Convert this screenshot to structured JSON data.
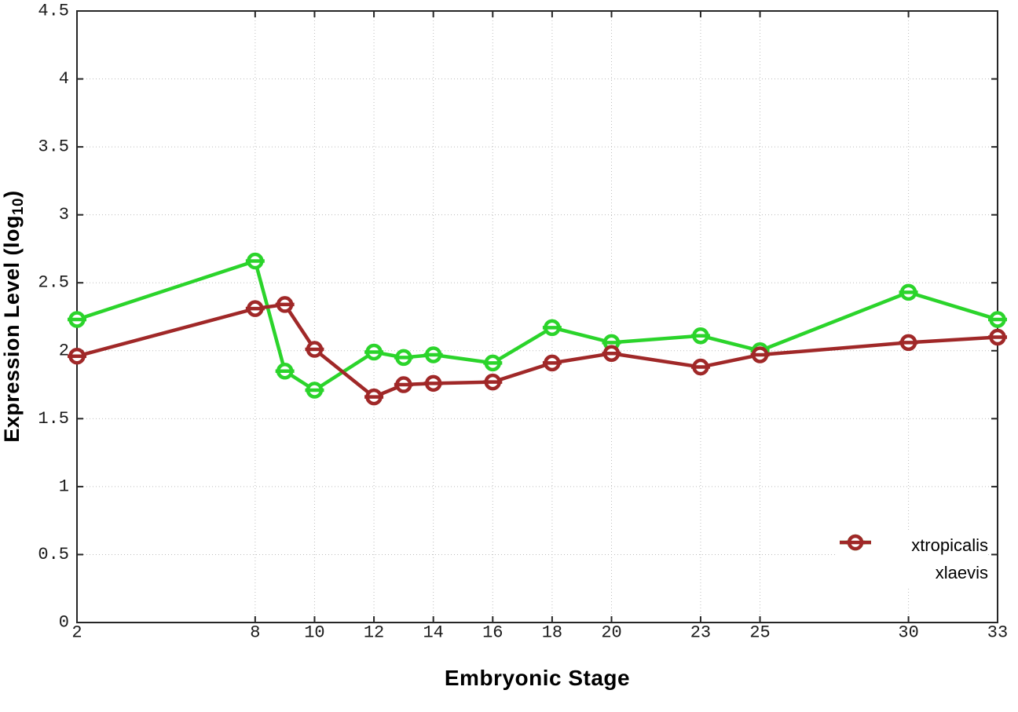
{
  "chart_data": {
    "type": "line",
    "title": "",
    "xlabel": "Embryonic Stage",
    "ylabel": "Expression Level (log10)",
    "ylabel_parts": {
      "prefix": "Expression Level (log",
      "sub": "10",
      "suffix": ")"
    },
    "x": [
      2,
      8,
      9,
      10,
      12,
      13,
      14,
      16,
      18,
      20,
      23,
      25,
      30,
      33
    ],
    "xticks": [
      2,
      8,
      10,
      12,
      14,
      16,
      18,
      20,
      23,
      25,
      30,
      33
    ],
    "yticks": [
      0,
      0.5,
      1,
      1.5,
      2,
      2.5,
      3,
      3.5,
      4,
      4.5
    ],
    "xlim": [
      2,
      33
    ],
    "ylim": [
      0,
      4.5
    ],
    "grid": true,
    "legend_position": "bottom-right",
    "series": [
      {
        "name": "xtropicalis",
        "color": "#2bd42b",
        "marker": "circle-dash",
        "values": [
          2.23,
          2.66,
          1.85,
          1.71,
          1.99,
          1.95,
          1.97,
          1.91,
          2.17,
          2.06,
          2.11,
          2.0,
          2.43,
          2.23
        ]
      },
      {
        "name": "xlaevis",
        "color": "#a02828",
        "marker": "circle-dash",
        "values": [
          1.96,
          2.31,
          2.34,
          2.01,
          1.66,
          1.75,
          1.76,
          1.77,
          1.91,
          1.98,
          1.88,
          1.97,
          2.06,
          2.1
        ]
      }
    ],
    "colors": {
      "background": "#ffffff",
      "axis": "#262626",
      "grid": "#bdbdbd",
      "tick_text": "#1a1a1a"
    }
  }
}
